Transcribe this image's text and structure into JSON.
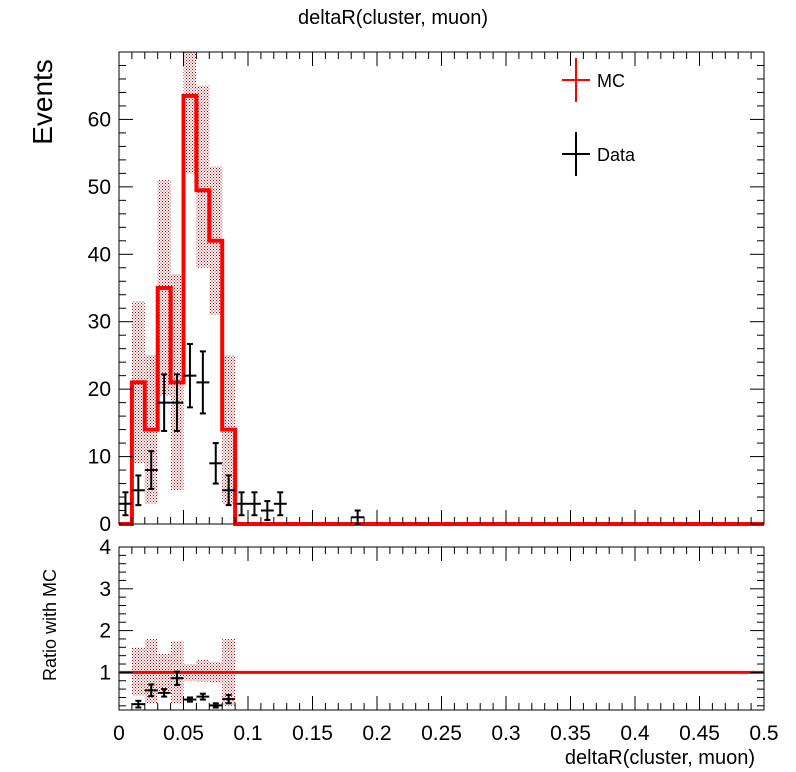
{
  "chart_data": [
    {
      "type": "histogram",
      "title": "deltaR(cluster, muon)",
      "ylabel": "Events",
      "ylim": [
        0,
        70
      ],
      "xlim": [
        0,
        0.5
      ],
      "yticks": [
        0,
        10,
        20,
        30,
        40,
        50,
        60
      ],
      "legend": {
        "position": "top-right",
        "entries": [
          {
            "name": "MC",
            "color": "#ff0000"
          },
          {
            "name": "Data",
            "color": "#000000"
          }
        ]
      },
      "bin_width": 0.01,
      "mc": {
        "name": "MC",
        "color": "#ff0000",
        "bin_edges": [
          0.0,
          0.01,
          0.02,
          0.03,
          0.04,
          0.05,
          0.06,
          0.07,
          0.08,
          0.09,
          0.5
        ],
        "values": [
          0,
          21,
          14,
          35,
          21,
          63.5,
          49.5,
          42,
          14,
          0
        ],
        "band_low": [
          0,
          9,
          3,
          19,
          5,
          52,
          38,
          31,
          3,
          0
        ],
        "band_high": [
          0,
          33,
          25,
          51,
          37,
          70,
          65,
          53,
          25,
          0
        ]
      },
      "data": {
        "name": "Data",
        "color": "#000000",
        "x": [
          0.005,
          0.015,
          0.025,
          0.035,
          0.045,
          0.055,
          0.065,
          0.075,
          0.085,
          0.095,
          0.105,
          0.115,
          0.125,
          0.185
        ],
        "y": [
          3,
          5,
          8,
          18,
          18,
          22,
          21,
          9,
          5,
          3,
          3,
          2,
          3,
          1
        ],
        "yerr": [
          1.7,
          2.2,
          2.8,
          4.2,
          4.2,
          4.7,
          4.6,
          3.0,
          2.2,
          1.7,
          1.7,
          1.4,
          1.7,
          1.0
        ]
      }
    },
    {
      "type": "ratio",
      "ylabel": "Ratio with MC",
      "xlabel": "deltaR(cluster, muon)",
      "ylim": [
        0.1,
        4
      ],
      "xlim": [
        0,
        0.5
      ],
      "yticks": [
        1,
        2,
        3,
        4
      ],
      "xticks": [
        "0",
        "0.05",
        "0.1",
        "0.15",
        "0.2",
        "0.25",
        "0.3",
        "0.35",
        "0.4",
        "0.45",
        "0.5"
      ],
      "reference_line": 1,
      "band": {
        "bin_edges": [
          0.01,
          0.02,
          0.03,
          0.04,
          0.05,
          0.06,
          0.07,
          0.08,
          0.09
        ],
        "low": [
          0.45,
          0.25,
          0.55,
          0.25,
          0.8,
          0.78,
          0.75,
          0.2
        ],
        "high": [
          1.6,
          1.8,
          1.45,
          1.75,
          1.2,
          1.3,
          1.25,
          1.8
        ]
      },
      "points": {
        "x": [
          0.015,
          0.025,
          0.035,
          0.045,
          0.055,
          0.065,
          0.075,
          0.085
        ],
        "y": [
          0.24,
          0.57,
          0.51,
          0.86,
          0.35,
          0.42,
          0.21,
          0.36
        ],
        "yerr": [
          0.08,
          0.14,
          0.09,
          0.16,
          0.05,
          0.07,
          0.05,
          0.1
        ]
      }
    }
  ]
}
